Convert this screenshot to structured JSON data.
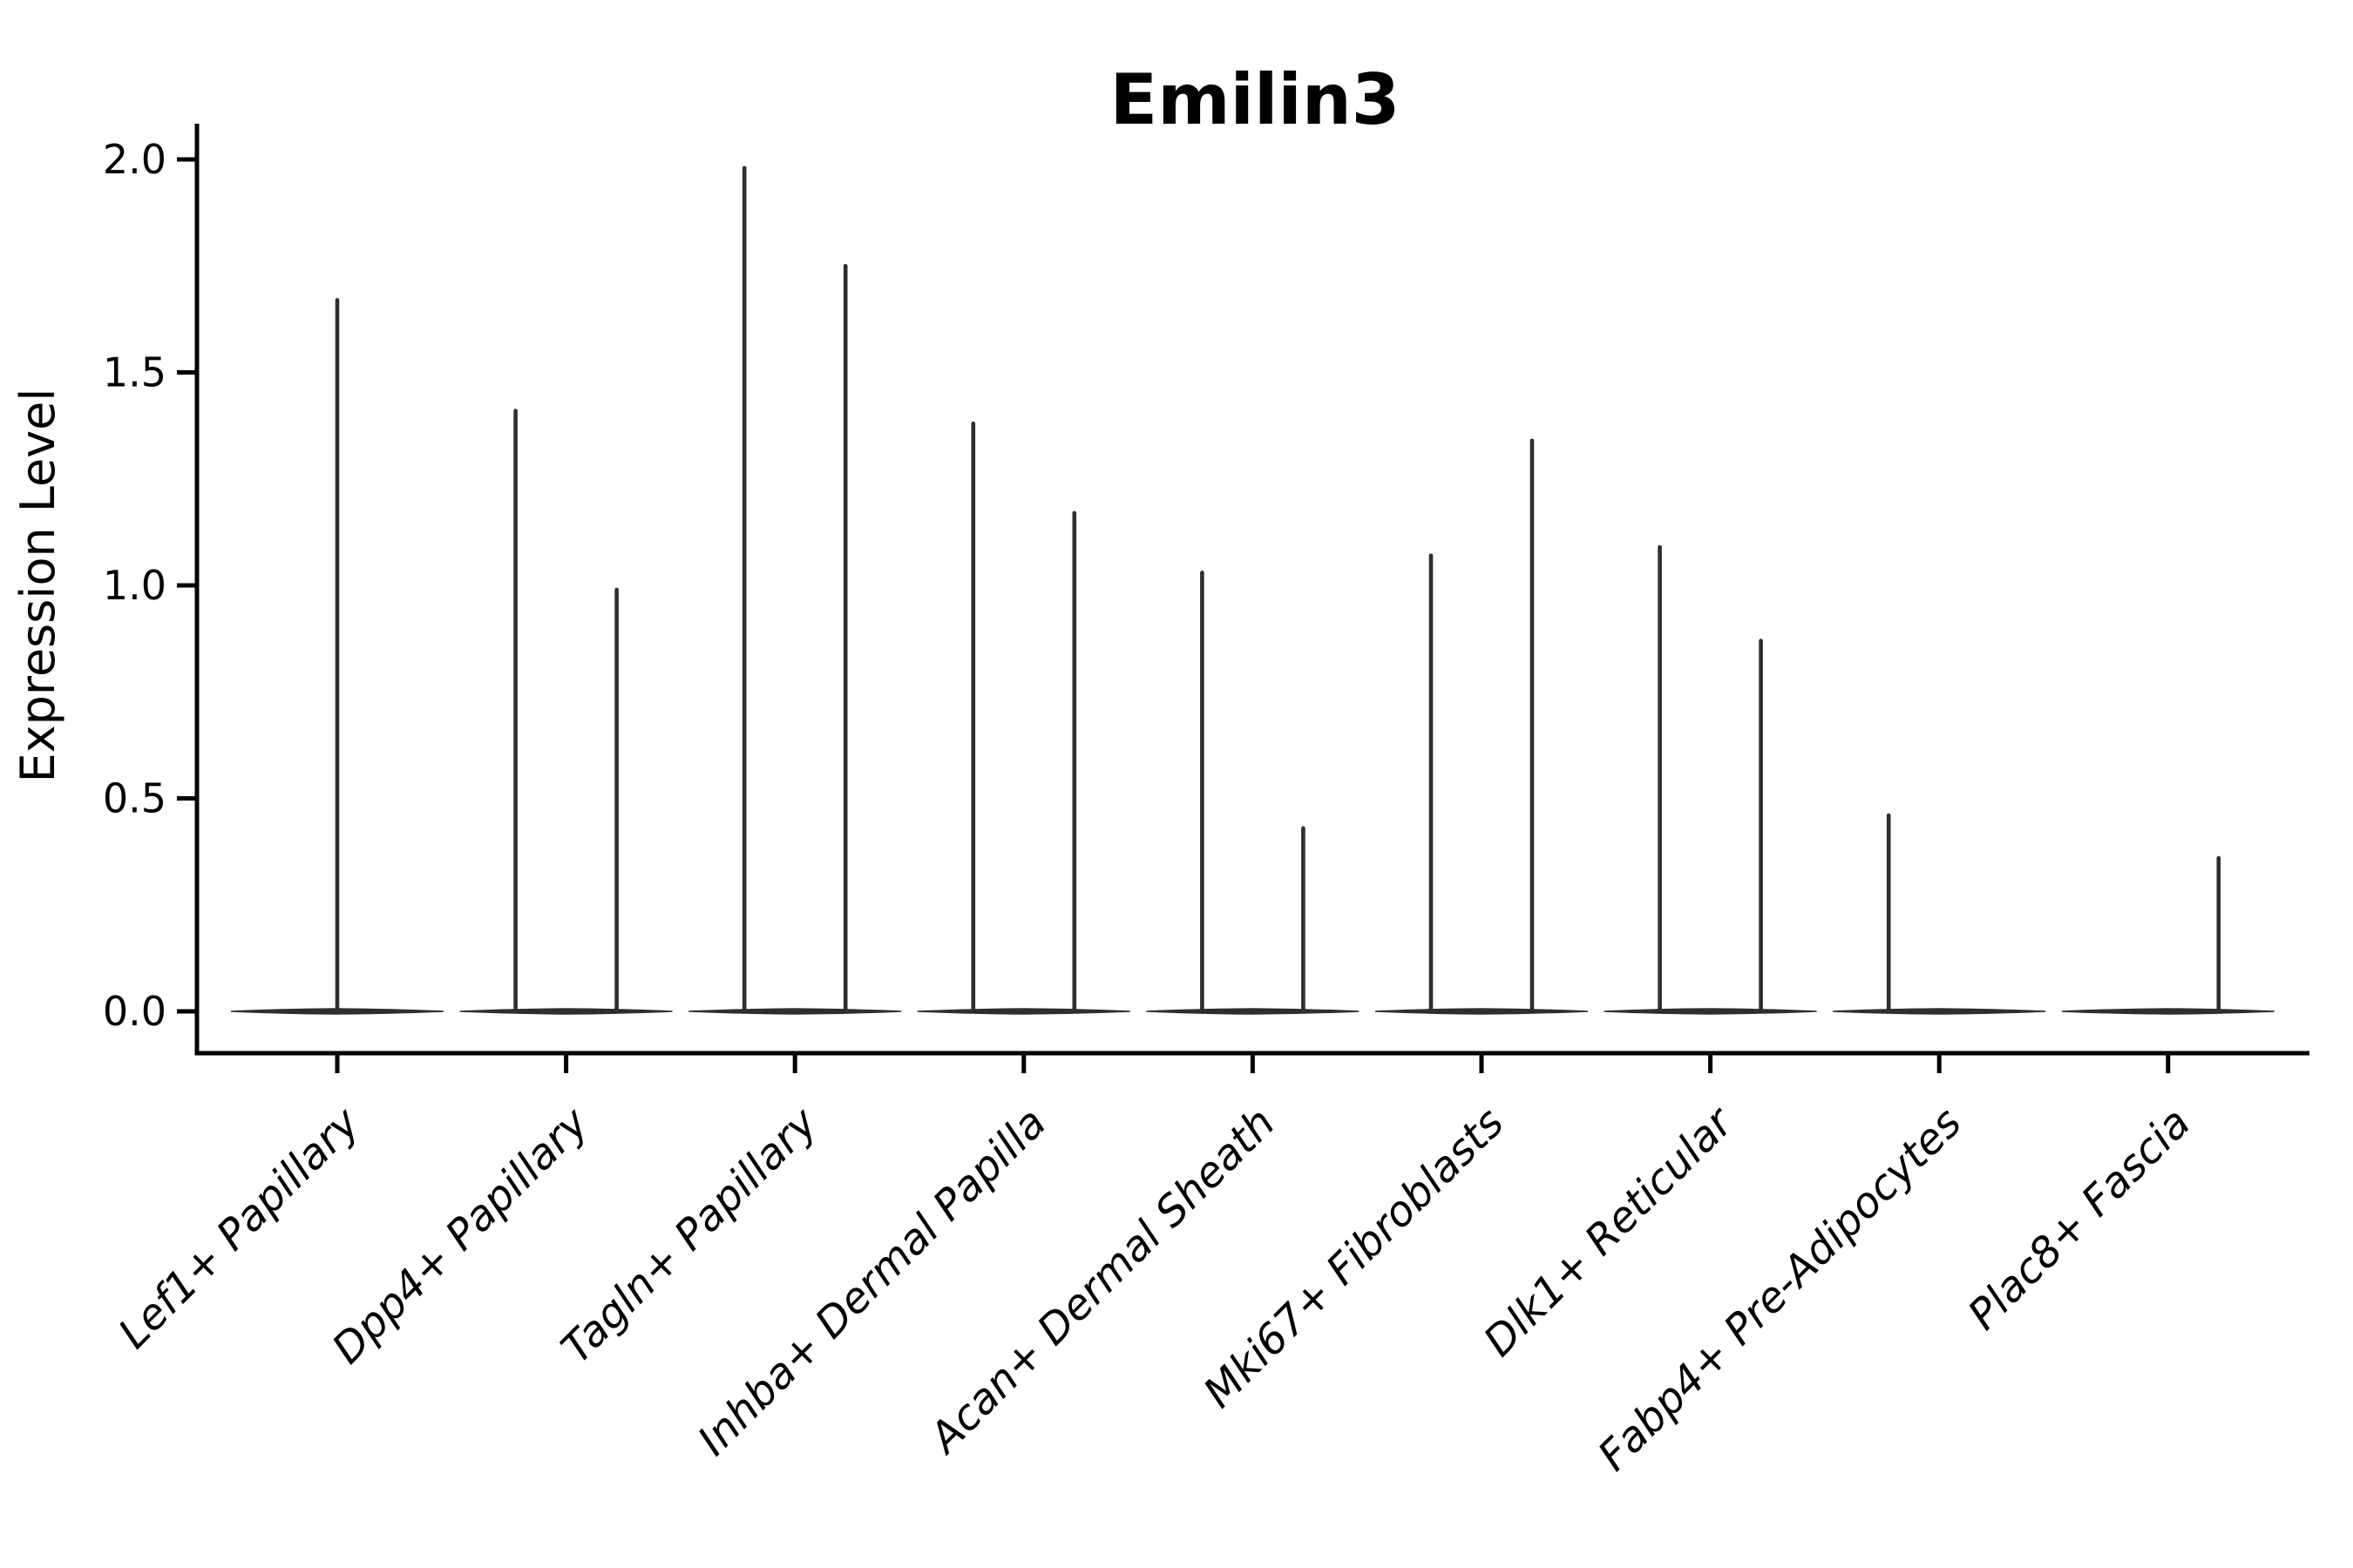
{
  "chart_data": {
    "type": "violin",
    "title": "Emilin3",
    "xlabel": "",
    "ylabel": "Expression Level",
    "ylim": [
      0.0,
      2.0
    ],
    "yticks": [
      0.0,
      0.5,
      1.0,
      1.5,
      2.0
    ],
    "ytick_labels": [
      "0.0",
      "0.5",
      "1.0",
      "1.5",
      "2.0"
    ],
    "grid": false,
    "legend": "none",
    "x_tick_label_rotation_degrees": 45,
    "categories": [
      "Lef1+ Papillary",
      "Dpp4+ Papillary",
      "Tagln+ Papillary",
      "Inhba+ Dermal Papilla",
      "Acan+ Dermal Sheath",
      "Mki67+ Fibroblasts",
      "Dlk1+ Reticular",
      "Fabp4+ Pre-Adipocytes",
      "Plac8+ Fascia"
    ],
    "violins": [
      {
        "category": "Lef1+ Papillary",
        "body_value": 0.0,
        "spikes": [
          {
            "pos": "center",
            "max": 1.67
          }
        ]
      },
      {
        "category": "Dpp4+ Papillary",
        "body_value": 0.0,
        "spikes": [
          {
            "pos": "left",
            "max": 1.41
          },
          {
            "pos": "right",
            "max": 0.99
          }
        ]
      },
      {
        "category": "Tagln+ Papillary",
        "body_value": 0.0,
        "spikes": [
          {
            "pos": "left",
            "max": 1.98
          },
          {
            "pos": "right",
            "max": 1.75
          }
        ]
      },
      {
        "category": "Inhba+ Dermal Papilla",
        "body_value": 0.0,
        "spikes": [
          {
            "pos": "left",
            "max": 1.38
          },
          {
            "pos": "right",
            "max": 1.17
          }
        ]
      },
      {
        "category": "Acan+ Dermal Sheath",
        "body_value": 0.0,
        "spikes": [
          {
            "pos": "left",
            "max": 1.03
          },
          {
            "pos": "right",
            "max": 0.43
          }
        ]
      },
      {
        "category": "Mki67+ Fibroblasts",
        "body_value": 0.0,
        "spikes": [
          {
            "pos": "left",
            "max": 1.07
          },
          {
            "pos": "right",
            "max": 1.34
          }
        ]
      },
      {
        "category": "Dlk1+ Reticular",
        "body_value": 0.0,
        "spikes": [
          {
            "pos": "left",
            "max": 1.09
          },
          {
            "pos": "right",
            "max": 0.87
          }
        ]
      },
      {
        "category": "Fabp4+ Pre-Adipocytes",
        "body_value": 0.0,
        "spikes": [
          {
            "pos": "left",
            "max": 0.46
          }
        ]
      },
      {
        "category": "Plac8+ Fascia",
        "body_value": 0.0,
        "spikes": [
          {
            "pos": "right",
            "max": 0.36
          }
        ]
      }
    ],
    "colors": {
      "violin": "#2e2e2e",
      "axis": "#000000",
      "text": "#000000",
      "background": "#ffffff"
    }
  }
}
